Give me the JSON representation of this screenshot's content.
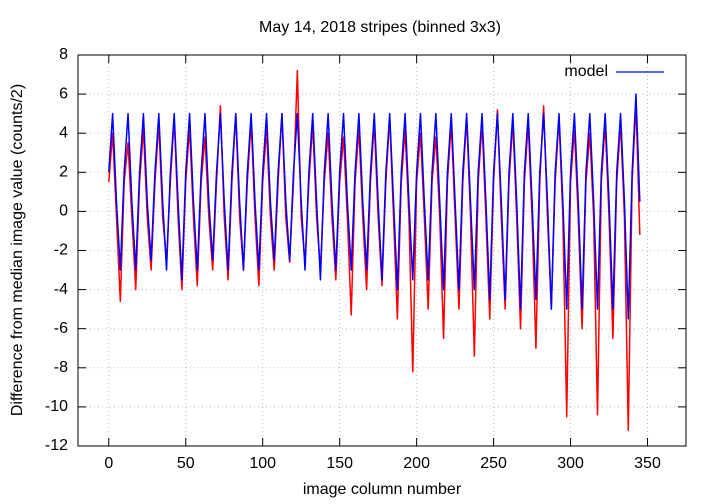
{
  "chart_data": {
    "type": "line",
    "title": "May 14, 2018 stripes (binned 3x3)",
    "xlabel": "image column number",
    "ylabel": "Difference from median image value (counts/2)",
    "x": [
      0,
      2.5,
      5,
      7.5,
      10,
      12.5,
      15,
      17.5,
      20,
      22.5,
      25,
      27.5,
      30,
      32.5,
      35,
      37.5,
      40,
      42.5,
      45,
      47.5,
      50,
      52.5,
      55,
      57.5,
      60,
      62.5,
      65,
      67.5,
      70,
      72.5,
      75,
      77.5,
      80,
      82.5,
      85,
      87.5,
      90,
      92.5,
      95,
      97.5,
      100,
      102.5,
      105,
      107.5,
      110,
      112.5,
      115,
      117.5,
      120,
      122.5,
      125,
      127.5,
      130,
      132.5,
      135,
      137.5,
      140,
      142.5,
      145,
      147.5,
      150,
      152.5,
      155,
      157.5,
      160,
      162.5,
      165,
      167.5,
      170,
      172.5,
      175,
      177.5,
      180,
      182.5,
      185,
      187.5,
      190,
      192.5,
      195,
      197.5,
      200,
      202.5,
      205,
      207.5,
      210,
      212.5,
      215,
      217.5,
      220,
      222.5,
      225,
      227.5,
      230,
      232.5,
      235,
      237.5,
      240,
      242.5,
      245,
      247.5,
      250,
      252.5,
      255,
      257.5,
      260,
      262.5,
      265,
      267.5,
      270,
      272.5,
      275,
      277.5,
      280,
      282.5,
      285,
      287.5,
      290,
      292.5,
      295,
      297.5,
      300,
      302.5,
      305,
      307.5,
      310,
      312.5,
      315,
      317.5,
      320,
      322.5,
      325,
      327.5,
      330,
      332.5,
      335,
      337.5,
      340,
      342.5,
      345
    ],
    "series": [
      {
        "color": "#ff0000",
        "values": [
          1.5,
          4,
          -0.3,
          -4.6,
          1.5,
          3.5,
          -0.3,
          -4,
          1.5,
          4.2,
          -0.3,
          -3,
          1.5,
          4.5,
          -0.3,
          -2.5,
          1.5,
          4.8,
          -0.3,
          -4,
          1.5,
          4.3,
          -0.3,
          -3.8,
          1.5,
          3.8,
          -0.3,
          -3,
          1.5,
          5.4,
          -0.3,
          -3.5,
          1.5,
          5,
          -0.3,
          -3,
          1.5,
          4.6,
          -0.3,
          -3.8,
          1.5,
          4.2,
          -0.3,
          -3,
          1.5,
          5,
          -0.3,
          -2.6,
          1.5,
          7.2,
          -0.3,
          -2.6,
          1.5,
          4.5,
          -0.3,
          -3,
          1.5,
          4,
          -0.3,
          -3.5,
          1.5,
          3.8,
          -0.3,
          -5.3,
          1.5,
          4.2,
          -0.3,
          -4,
          1.5,
          4.5,
          -0.3,
          -3.8,
          1.5,
          4.8,
          -0.3,
          -5.5,
          1.5,
          4.2,
          -0.3,
          -8.2,
          1.5,
          4,
          -0.3,
          -5,
          1.5,
          3.8,
          -0.3,
          -6.5,
          1.5,
          4.5,
          -0.3,
          -5,
          1.5,
          4.8,
          -0.3,
          -7.4,
          1.5,
          4.5,
          -0.3,
          -5.5,
          1.5,
          5.2,
          -0.3,
          -5,
          1.5,
          4.6,
          -0.3,
          -6,
          1.5,
          4.5,
          -0.3,
          -7,
          1.5,
          5.4,
          -0.3,
          -5,
          1.5,
          4.8,
          -0.3,
          -10.5,
          1.5,
          4.2,
          -0.3,
          -6,
          1.5,
          4,
          -0.3,
          -10.4,
          1.5,
          4.5,
          -0.3,
          -6.5,
          1.5,
          4.5,
          -0.3,
          -11.2,
          1.5,
          5.5,
          -1.2
        ]
      },
      {
        "name": "model",
        "color": "#0000ff",
        "values": [
          2,
          5,
          0.5,
          -3,
          2,
          5,
          0.5,
          -3,
          2,
          5,
          0.5,
          -2.5,
          2,
          5,
          0.5,
          -3,
          2,
          5,
          0.5,
          -3.5,
          2,
          5,
          0.5,
          -3,
          2,
          5,
          0.5,
          -2.5,
          2,
          5,
          0.5,
          -3,
          2,
          5,
          0.5,
          -3,
          2,
          5,
          0.5,
          -3,
          2,
          5,
          0.5,
          -2.5,
          2,
          5,
          0.5,
          -2.5,
          2,
          5,
          0.5,
          -3,
          2,
          5,
          0.5,
          -3.5,
          2,
          5,
          0.5,
          -3,
          2,
          5,
          0.5,
          -3,
          2,
          5,
          0.5,
          -3,
          2,
          5,
          0.5,
          -3.5,
          2,
          5,
          0.5,
          -4,
          2,
          5,
          0.5,
          -3.5,
          2,
          5,
          0.5,
          -3.5,
          2,
          5,
          0.5,
          -4,
          2,
          5,
          0.5,
          -4,
          2,
          5,
          0.5,
          -4,
          2,
          5,
          0.5,
          -4.5,
          2,
          5,
          0.5,
          -4.5,
          2,
          5,
          0.5,
          -5,
          2,
          5,
          0.5,
          -4.5,
          2,
          5,
          0.5,
          -5,
          2,
          5,
          0.5,
          -5,
          2,
          5,
          0.5,
          -5,
          2,
          5,
          0.5,
          -5,
          2,
          5,
          0.5,
          -5,
          2,
          5,
          0.5,
          -5.5,
          2,
          6,
          0.5
        ]
      }
    ],
    "xlim": [
      -20,
      375
    ],
    "xticks": [
      0,
      50,
      100,
      150,
      200,
      250,
      300,
      350
    ],
    "ylim": [
      -12,
      8
    ],
    "yticks": [
      -12,
      -10,
      -8,
      -6,
      -4,
      -2,
      0,
      2,
      4,
      6,
      8
    ],
    "grid": true,
    "legend": "upper right"
  }
}
